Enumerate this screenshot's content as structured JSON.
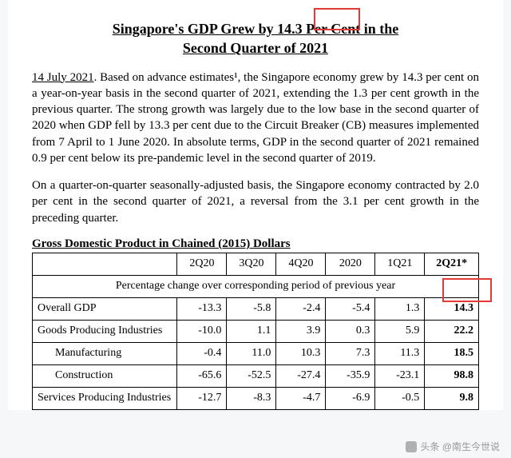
{
  "title_line1": "Singapore's GDP Grew by 14.3 Per Cent in the",
  "title_line2": "Second Quarter of 2021",
  "date": "14 July 2021",
  "para1_rest": ". Based on advance estimates¹, the Singapore economy grew by 14.3 per cent on a year-on-year basis in the second quarter of 2021, extending the 1.3 per cent growth in the previous quarter. The strong growth was largely due to the low base in the second quarter of 2020 when GDP fell by 13.3 per cent due to the Circuit Breaker (CB) measures implemented from 7 April to 1 June 2020. In absolute terms, GDP in the second quarter of 2021 remained 0.9 per cent below its pre-pandemic level in the second quarter of 2019.",
  "para2": "On a quarter-on-quarter seasonally-adjusted basis, the Singapore economy contracted by 2.0 per cent in the second quarter of 2021, a reversal from the 3.1 per cent growth in the preceding quarter.",
  "table_title": "Gross Domestic Product in Chained (2015) Dollars",
  "table": {
    "columns": [
      "2Q20",
      "3Q20",
      "4Q20",
      "2020",
      "1Q21",
      "2Q21*"
    ],
    "section_caption": "Percentage change over corresponding period of previous year",
    "col_widths_pct": [
      28,
      11,
      11,
      11,
      11,
      11,
      12
    ],
    "header_bold_last": true,
    "rows": [
      {
        "label": "Overall GDP",
        "indent": 0,
        "cells": [
          "-13.3",
          "-5.8",
          "-2.4",
          "-5.4",
          "1.3",
          "14.3"
        ]
      },
      {
        "label": "Goods Producing Industries",
        "indent": 0,
        "cells": [
          "-10.0",
          "1.1",
          "3.9",
          "0.3",
          "5.9",
          "22.2"
        ]
      },
      {
        "label": "Manufacturing",
        "indent": 1,
        "cells": [
          "-0.4",
          "11.0",
          "10.3",
          "7.3",
          "11.3",
          "18.5"
        ]
      },
      {
        "label": "Construction",
        "indent": 1,
        "cells": [
          "-65.6",
          "-52.5",
          "-27.4",
          "-35.9",
          "-23.1",
          "98.8"
        ]
      },
      {
        "label": "Services Producing Industries",
        "indent": 0,
        "cells": [
          "-12.7",
          "-8.3",
          "-4.7",
          "-6.9",
          "-0.5",
          "9.8"
        ]
      }
    ],
    "styling": {
      "border_color": "#000000",
      "last_col_fontweight": "bold",
      "font_family": "Times New Roman",
      "font_size_pt": 11
    }
  },
  "annotations": {
    "red_boxes": [
      {
        "target": "title-number-14.3",
        "color": "#e53935"
      },
      {
        "target": "col-header-2Q21",
        "color": "#e53935"
      }
    ]
  },
  "watermark": "头条 @南生今世说"
}
